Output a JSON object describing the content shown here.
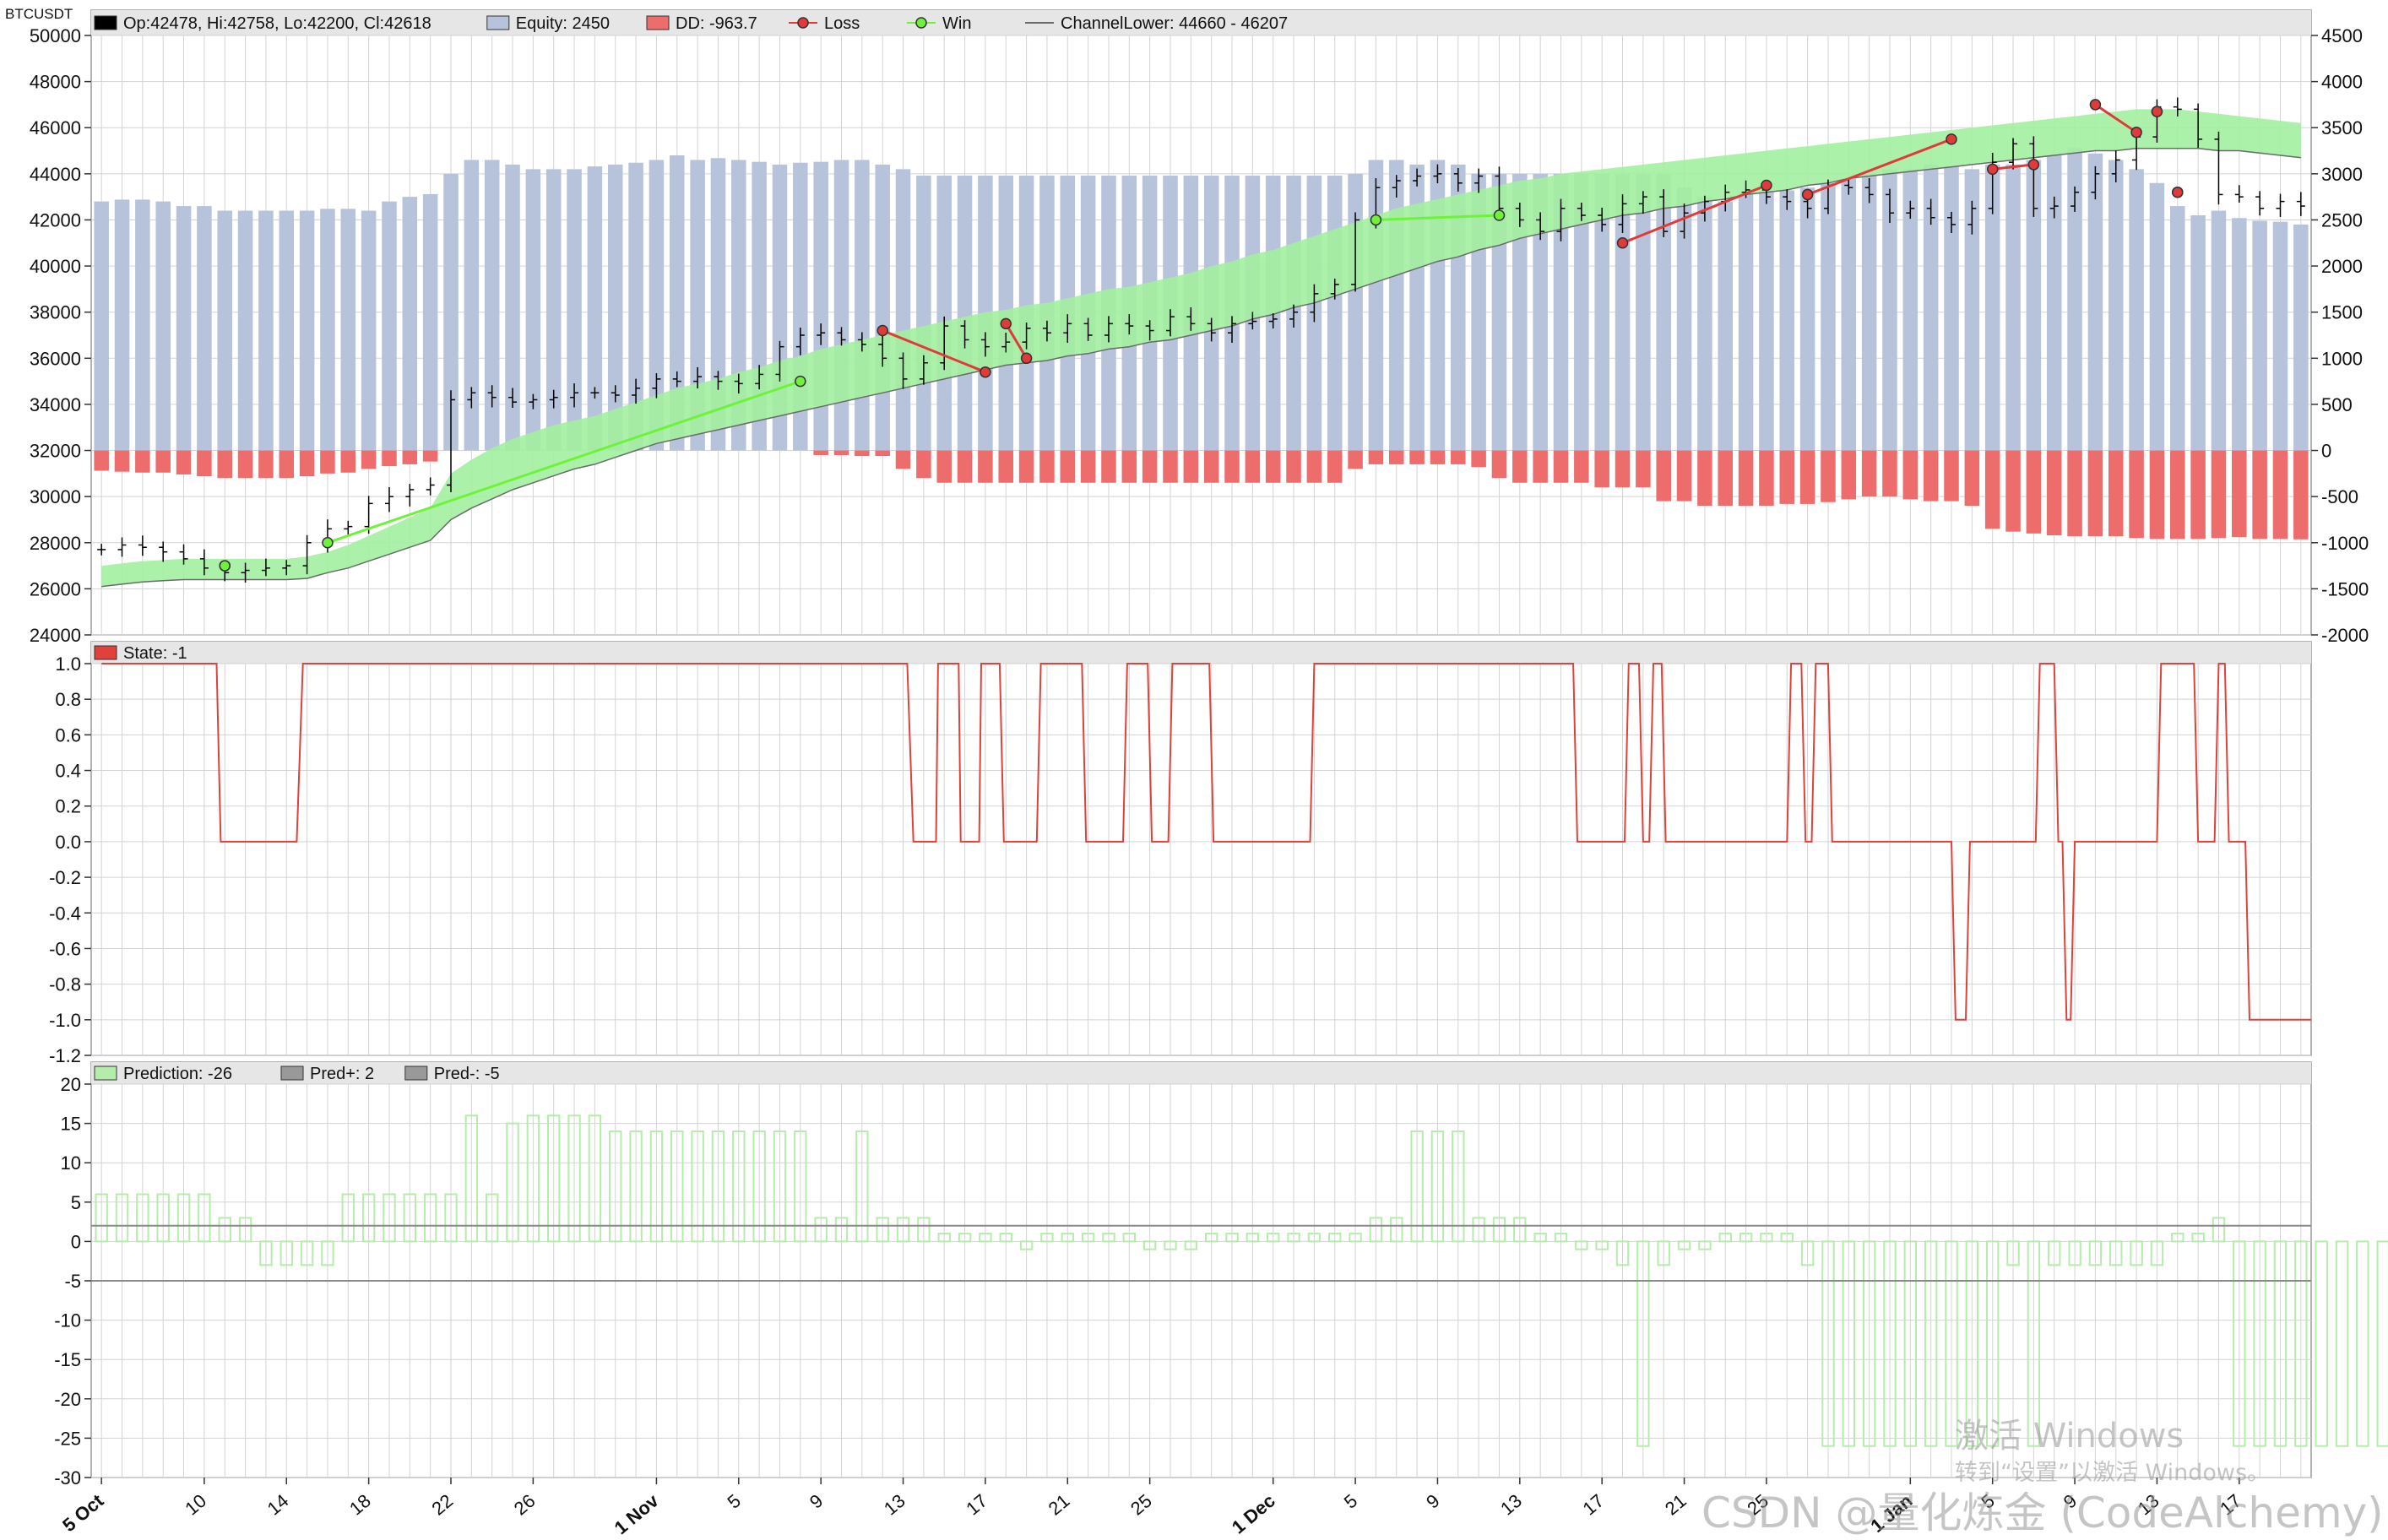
{
  "symbol": "BTCUSDT",
  "colors": {
    "grid": "#d3d3d3",
    "panel_header": "#e6e6e6",
    "equity": "#b7c3db",
    "drawdown": "#ec6d6b",
    "loss": "#e03a3a",
    "win": "#6ef23a",
    "channel_fill": "#a3f0a0",
    "channel_edge": "#6a6a6a",
    "state": "#e0413a",
    "prediction": "#b4ecaa",
    "pred_line": "#8a8a8a",
    "candle": "#000000"
  },
  "x_axis": {
    "ticks": [
      {
        "label": "5 Oct",
        "i": 0,
        "bold": true
      },
      {
        "label": "10",
        "i": 5
      },
      {
        "label": "14",
        "i": 9
      },
      {
        "label": "18",
        "i": 13
      },
      {
        "label": "22",
        "i": 17
      },
      {
        "label": "26",
        "i": 21
      },
      {
        "label": "1 Nov",
        "i": 27,
        "bold": true
      },
      {
        "label": "5",
        "i": 31
      },
      {
        "label": "9",
        "i": 35
      },
      {
        "label": "13",
        "i": 39
      },
      {
        "label": "17",
        "i": 43
      },
      {
        "label": "21",
        "i": 47
      },
      {
        "label": "25",
        "i": 51
      },
      {
        "label": "1 Dec",
        "i": 57,
        "bold": true
      },
      {
        "label": "5",
        "i": 61
      },
      {
        "label": "9",
        "i": 65
      },
      {
        "label": "13",
        "i": 69
      },
      {
        "label": "17",
        "i": 73
      },
      {
        "label": "21",
        "i": 77
      },
      {
        "label": "25",
        "i": 81
      },
      {
        "label": "1 Jan",
        "i": 88,
        "bold": true
      },
      {
        "label": "5",
        "i": 92
      },
      {
        "label": "9",
        "i": 96
      },
      {
        "label": "13",
        "i": 100
      },
      {
        "label": "17",
        "i": 104
      }
    ]
  },
  "panels": {
    "price": {
      "legend": [
        {
          "swatch": "box",
          "color": "#000000",
          "text": "Op:42478, Hi:42758, Lo:42200, Cl:42618"
        },
        {
          "swatch": "box",
          "color": "#b7c3db",
          "text": "Equity: 2450"
        },
        {
          "swatch": "box",
          "color": "#ec6d6b",
          "text": "DD: -963.7"
        },
        {
          "swatch": "dot",
          "color": "#e03a3a",
          "text": "Loss"
        },
        {
          "swatch": "dot",
          "color": "#6ef23a",
          "text": "Win"
        },
        {
          "swatch": "line",
          "color": "#6a6a6a",
          "text": "ChannelLower: 44660 - 46207"
        }
      ],
      "y_left_ticks": [
        "24000",
        "26000",
        "28000",
        "30000",
        "32000",
        "34000",
        "36000",
        "38000",
        "40000",
        "42000",
        "44000",
        "46000",
        "48000",
        "50000"
      ],
      "y_right_ticks": [
        "-2000",
        "-1500",
        "-1000",
        "-500",
        "0",
        "500",
        "1000",
        "1500",
        "2000",
        "2500",
        "3000",
        "3500",
        "4000",
        "4500"
      ]
    },
    "state": {
      "legend": [
        {
          "swatch": "box",
          "color": "#e0413a",
          "text": "State: -1"
        }
      ],
      "y_ticks": [
        "-1.2",
        "-1.0",
        "-0.8",
        "-0.6",
        "-0.4",
        "-0.2",
        "0.0",
        "0.2",
        "0.4",
        "0.6",
        "0.8",
        "1.0"
      ]
    },
    "prediction": {
      "legend": [
        {
          "swatch": "box",
          "color": "#b4ecaa",
          "text": "Prediction: -26"
        },
        {
          "swatch": "box",
          "color": "#999999",
          "text": "Pred+: 2"
        },
        {
          "swatch": "box",
          "color": "#999999",
          "text": "Pred-: -5"
        }
      ],
      "y_ticks": [
        "-30",
        "-25",
        "-20",
        "-15",
        "-10",
        "-5",
        "0",
        "5",
        "10",
        "15",
        "20"
      ]
    }
  },
  "chart_data": [
    {
      "type": "candlestick",
      "name": "BTCUSDT daily price with equity / drawdown and channel",
      "x_start": "5 Oct",
      "ylim": [
        24000,
        51000
      ],
      "y2lim": [
        -2000,
        4500
      ],
      "close": [
        27700,
        27900,
        27800,
        27600,
        27300,
        26900,
        26700,
        26800,
        26900,
        27000,
        28000,
        28600,
        28700,
        29700,
        30000,
        30300,
        30500,
        34200,
        34500,
        34300,
        34100,
        34200,
        34300,
        34500,
        34500,
        34400,
        34700,
        35100,
        35000,
        35200,
        35000,
        34900,
        35300,
        36500,
        37000,
        37100,
        36800,
        36600,
        36000,
        35100,
        35800,
        37400,
        36800,
        36500,
        36700,
        37300,
        37100,
        37500,
        37000,
        37500,
        37400,
        37200,
        37800,
        37500,
        37100,
        37500,
        37600,
        37700,
        38000,
        38800,
        39200,
        42000,
        43400,
        43700,
        43900,
        44000,
        43600,
        43900,
        42500,
        42000,
        41500,
        42500,
        42200,
        41800,
        42700,
        43000,
        41500,
        42300,
        42800,
        43200,
        43300,
        43000,
        42800,
        42500,
        43500,
        43400,
        43100,
        42300,
        42500,
        42100,
        41800,
        42500,
        44500,
        45300,
        42500,
        42600,
        43200,
        44000,
        44600,
        45600,
        46900,
        46800,
        45500,
        43100,
        43000,
        42500,
        42800,
        42600
      ],
      "channel_upper": [
        27000,
        27100,
        27200,
        27250,
        27300,
        27300,
        27300,
        27300,
        27300,
        27300,
        27400,
        27600,
        27900,
        28300,
        28700,
        29100,
        29500,
        31000,
        31600,
        32100,
        32500,
        32800,
        33100,
        33300,
        33500,
        33800,
        34100,
        34400,
        34700,
        34900,
        35100,
        35400,
        35600,
        35900,
        36100,
        36400,
        36600,
        36800,
        37000,
        37200,
        37400,
        37600,
        37800,
        38000,
        38100,
        38300,
        38400,
        38600,
        38800,
        39000,
        39100,
        39300,
        39500,
        39700,
        40000,
        40200,
        40500,
        40700,
        41000,
        41300,
        41600,
        41900,
        42200,
        42500,
        42700,
        42900,
        43100,
        43300,
        43500,
        43700,
        43800,
        44000,
        44100,
        44200,
        44300,
        44400,
        44500,
        44600,
        44700,
        44800,
        44900,
        45000,
        45100,
        45200,
        45300,
        45400,
        45500,
        45600,
        45700,
        45800,
        45900,
        46000,
        46100,
        46200,
        46300,
        46400,
        46500,
        46600,
        46700,
        46800,
        46800,
        46800,
        46700,
        46600,
        46500,
        46400,
        46300,
        46200
      ],
      "channel_lower": [
        26100,
        26200,
        26300,
        26350,
        26400,
        26400,
        26400,
        26400,
        26400,
        26400,
        26450,
        26700,
        26900,
        27200,
        27500,
        27800,
        28100,
        29000,
        29500,
        29900,
        30300,
        30600,
        30900,
        31200,
        31400,
        31700,
        32000,
        32300,
        32500,
        32700,
        32900,
        33100,
        33300,
        33500,
        33700,
        33900,
        34100,
        34300,
        34500,
        34700,
        34900,
        35100,
        35300,
        35500,
        35700,
        35800,
        35900,
        36100,
        36200,
        36400,
        36500,
        36700,
        36800,
        37000,
        37200,
        37400,
        37700,
        37900,
        38200,
        38400,
        38700,
        39000,
        39300,
        39600,
        39900,
        40200,
        40400,
        40700,
        40900,
        41200,
        41400,
        41600,
        41800,
        42000,
        42200,
        42300,
        42500,
        42600,
        42800,
        42900,
        43100,
        43200,
        43300,
        43500,
        43600,
        43800,
        43900,
        44000,
        44100,
        44200,
        44300,
        44400,
        44500,
        44600,
        44700,
        44800,
        44900,
        45000,
        45000,
        45100,
        45100,
        45100,
        45100,
        45000,
        45000,
        44900,
        44800,
        44700
      ],
      "equity": [
        2700,
        2720,
        2720,
        2700,
        2650,
        2650,
        2600,
        2600,
        2600,
        2600,
        2600,
        2620,
        2620,
        2600,
        2700,
        2750,
        2780,
        3000,
        3150,
        3150,
        3100,
        3050,
        3050,
        3050,
        3080,
        3100,
        3120,
        3150,
        3200,
        3150,
        3170,
        3150,
        3130,
        3100,
        3120,
        3130,
        3150,
        3150,
        3100,
        3050,
        2980,
        2980,
        2980,
        2980,
        2980,
        2980,
        2980,
        2980,
        2980,
        2980,
        2980,
        2980,
        2980,
        2980,
        2980,
        2980,
        2980,
        2980,
        2980,
        2980,
        2980,
        3000,
        3150,
        3150,
        3100,
        3150,
        3100,
        3000,
        3000,
        3000,
        3000,
        3000,
        3000,
        3000,
        3000,
        3000,
        3000,
        2850,
        2750,
        2700,
        2780,
        2800,
        2820,
        2850,
        2900,
        2950,
        3000,
        3050,
        3050,
        3100,
        3080,
        3050,
        3100,
        3100,
        3150,
        3200,
        3280,
        3220,
        3150,
        3050,
        2900,
        2650,
        2550,
        2600,
        2520,
        2490,
        2480,
        2450
      ],
      "drawdown": [
        -220,
        -230,
        -240,
        -240,
        -260,
        -280,
        -300,
        -300,
        -300,
        -300,
        -280,
        -250,
        -240,
        -200,
        -170,
        -150,
        -120,
        0,
        0,
        0,
        0,
        0,
        0,
        0,
        0,
        0,
        0,
        0,
        0,
        0,
        0,
        0,
        0,
        0,
        0,
        -50,
        -50,
        -60,
        -60,
        -200,
        -300,
        -350,
        -350,
        -350,
        -350,
        -350,
        -350,
        -350,
        -350,
        -350,
        -350,
        -350,
        -350,
        -350,
        -350,
        -350,
        -350,
        -350,
        -350,
        -350,
        -350,
        -200,
        -150,
        -150,
        -150,
        -150,
        -150,
        -180,
        -300,
        -350,
        -350,
        -350,
        -350,
        -400,
        -400,
        -400,
        -550,
        -550,
        -600,
        -600,
        -600,
        -600,
        -580,
        -580,
        -560,
        -530,
        -500,
        -500,
        -530,
        -550,
        -550,
        -600,
        -850,
        -880,
        -900,
        -920,
        -930,
        -930,
        -930,
        -950,
        -960,
        -960,
        -960,
        -950,
        -940,
        -960,
        -960,
        -963.7
      ],
      "trades": [
        {
          "type": "win",
          "from": {
            "i": 6,
            "y": 27000
          },
          "to": {
            "i": 6,
            "y": 27000
          }
        },
        {
          "type": "win",
          "from": {
            "i": 11,
            "y": 28000
          },
          "to": {
            "i": 34,
            "y": 35000
          }
        },
        {
          "type": "loss",
          "from": {
            "i": 38,
            "y": 37200
          },
          "to": {
            "i": 43,
            "y": 35400
          }
        },
        {
          "type": "loss",
          "from": {
            "i": 44,
            "y": 37500
          },
          "to": {
            "i": 45,
            "y": 36000
          }
        },
        {
          "type": "win",
          "from": {
            "i": 62,
            "y": 42000
          },
          "to": {
            "i": 68,
            "y": 42200
          }
        },
        {
          "type": "loss",
          "from": {
            "i": 74,
            "y": 41000
          },
          "to": {
            "i": 81,
            "y": 43500
          }
        },
        {
          "type": "loss",
          "from": {
            "i": 83,
            "y": 43100
          },
          "to": {
            "i": 90,
            "y": 45500
          }
        },
        {
          "type": "loss",
          "from": {
            "i": 92,
            "y": 44200
          },
          "to": {
            "i": 94,
            "y": 44400
          }
        },
        {
          "type": "loss",
          "from": {
            "i": 97,
            "y": 47000
          },
          "to": {
            "i": 99,
            "y": 45800
          }
        },
        {
          "type": "loss",
          "from": {
            "i": 100,
            "y": 46700
          },
          "to": {
            "i": 100,
            "y": 46700
          }
        },
        {
          "type": "loss",
          "from": {
            "i": 101,
            "y": 43200
          },
          "to": {
            "i": 101,
            "y": 43200
          }
        }
      ]
    },
    {
      "type": "line",
      "name": "State",
      "ylim": [
        -1.2,
        1.0
      ],
      "segments": [
        {
          "from": 0,
          "to": 5.6,
          "y": 1.0
        },
        {
          "from": 5.8,
          "to": 9.5,
          "y": 0.0
        },
        {
          "from": 9.8,
          "to": 39.2,
          "y": 1.0
        },
        {
          "from": 39.5,
          "to": 40.6,
          "y": 0.0
        },
        {
          "from": 40.7,
          "to": 41.7,
          "y": 1.0
        },
        {
          "from": 41.8,
          "to": 42.7,
          "y": 0.0
        },
        {
          "from": 42.8,
          "to": 43.7,
          "y": 1.0
        },
        {
          "from": 43.9,
          "to": 45.5,
          "y": 0.0
        },
        {
          "from": 45.7,
          "to": 47.7,
          "y": 1.0
        },
        {
          "from": 47.9,
          "to": 49.7,
          "y": 0.0
        },
        {
          "from": 49.9,
          "to": 50.9,
          "y": 1.0
        },
        {
          "from": 51.1,
          "to": 51.9,
          "y": 0.0
        },
        {
          "from": 52.1,
          "to": 53.9,
          "y": 1.0
        },
        {
          "from": 54.1,
          "to": 58.8,
          "y": 0.0
        },
        {
          "from": 59.0,
          "to": 71.6,
          "y": 1.0
        },
        {
          "from": 71.8,
          "to": 74.1,
          "y": 0.0
        },
        {
          "from": 74.3,
          "to": 74.8,
          "y": 1.0
        },
        {
          "from": 75.0,
          "to": 75.3,
          "y": 0.0
        },
        {
          "from": 75.5,
          "to": 75.9,
          "y": 1.0
        },
        {
          "from": 76.1,
          "to": 82.0,
          "y": 0.0
        },
        {
          "from": 82.2,
          "to": 82.7,
          "y": 1.0
        },
        {
          "from": 82.9,
          "to": 83.2,
          "y": 0.0
        },
        {
          "from": 83.4,
          "to": 84.0,
          "y": 1.0
        },
        {
          "from": 84.2,
          "to": 90.0,
          "y": 0.0
        },
        {
          "from": 90.2,
          "to": 90.7,
          "y": -1.0
        },
        {
          "from": 90.9,
          "to": 94.1,
          "y": 0.0
        },
        {
          "from": 94.3,
          "to": 95.0,
          "y": 1.0
        },
        {
          "from": 95.2,
          "to": 95.4,
          "y": 0.0
        },
        {
          "from": 95.6,
          "to": 95.8,
          "y": -1.0
        },
        {
          "from": 96.0,
          "to": 100.0,
          "y": 0.0
        },
        {
          "from": 100.2,
          "to": 101.8,
          "y": 1.0
        },
        {
          "from": 102.0,
          "to": 102.8,
          "y": 0.0
        },
        {
          "from": 103.0,
          "to": 103.3,
          "y": 1.0
        },
        {
          "from": 103.5,
          "to": 104.3,
          "y": 0.0
        },
        {
          "from": 104.5,
          "to": 107.5,
          "y": -1.0
        }
      ]
    },
    {
      "type": "bar",
      "name": "Prediction",
      "ylim": [
        -30,
        20
      ],
      "pred_plus": 2,
      "pred_minus": -5,
      "values": [
        6,
        6,
        6,
        6,
        6,
        6,
        3,
        3,
        -3,
        -3,
        -3,
        -3,
        6,
        6,
        6,
        6,
        6,
        6,
        16,
        6,
        15,
        16,
        16,
        16,
        16,
        14,
        14,
        14,
        14,
        14,
        14,
        14,
        14,
        14,
        14,
        3,
        3,
        14,
        3,
        3,
        3,
        1,
        1,
        1,
        1,
        -1,
        1,
        1,
        1,
        1,
        1,
        -1,
        -1,
        -1,
        1,
        1,
        1,
        1,
        1,
        1,
        1,
        1,
        3,
        3,
        14,
        14,
        14,
        3,
        3,
        3,
        1,
        1,
        -1,
        -1,
        -3,
        -26,
        -3,
        -1,
        -1,
        1,
        1,
        1,
        1,
        -3,
        -26,
        -26,
        -26,
        -26,
        -26,
        -26,
        -26,
        -26,
        -26,
        -3,
        -26,
        -3,
        -3,
        -3,
        -3,
        -3,
        -3,
        1,
        1,
        3,
        -26,
        -26,
        -26,
        -26,
        -26,
        -26,
        -26,
        -26
      ]
    }
  ],
  "watermark": {
    "line1": "激活 Windows",
    "line2": "转到“设置”以激活 Windows。",
    "csdn": "CSDN @量化炼金 (CodeAlchemy)"
  }
}
